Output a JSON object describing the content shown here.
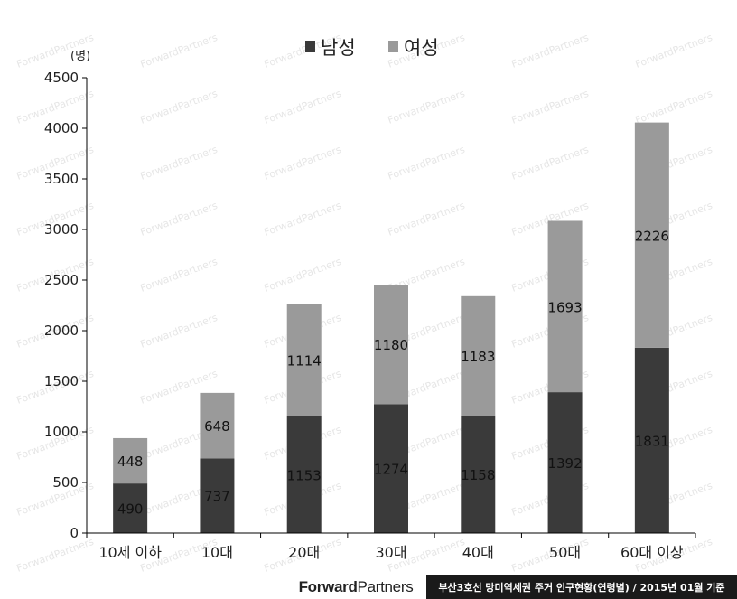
{
  "chart_data": {
    "type": "bar",
    "stacked": true,
    "categories": [
      "10세 이하",
      "10대",
      "20대",
      "30대",
      "40대",
      "50대",
      "60대 이상"
    ],
    "series": [
      {
        "name": "남성",
        "values": [
          490,
          737,
          1153,
          1274,
          1158,
          1392,
          1831
        ],
        "color": "#3a3a3a"
      },
      {
        "name": "여성",
        "values": [
          448,
          648,
          1114,
          1180,
          1183,
          1693,
          2226
        ],
        "color": "#9a9a9a"
      }
    ],
    "ylabel": "(명)",
    "ylim": [
      0,
      4500
    ],
    "yticks": [
      0,
      500,
      1000,
      1500,
      2000,
      2500,
      3000,
      3500,
      4000,
      4500
    ],
    "legend_position": "top-center",
    "grid": false
  },
  "watermark": "ForwardPartners",
  "footer": {
    "brand_bold": "Forward",
    "brand_light": "Partners",
    "note": "부산3호선 망미역세권 주거 인구현황(연령별) / 2015년 01월 기준"
  }
}
